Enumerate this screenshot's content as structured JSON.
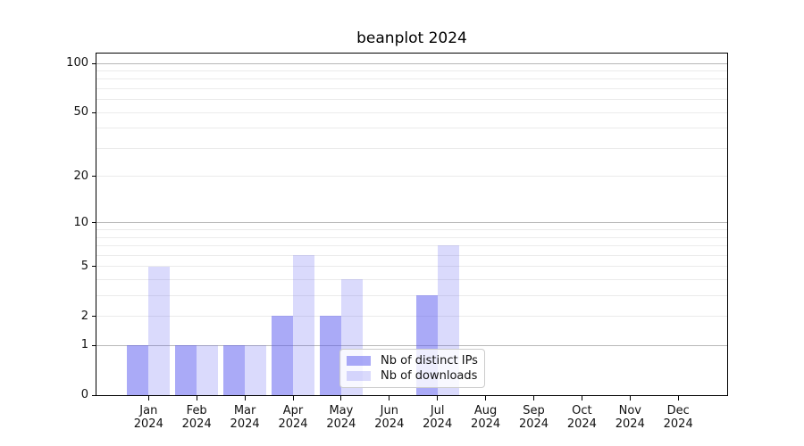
{
  "chart_data": {
    "type": "bar",
    "title": "beanplot 2024",
    "categories": [
      "Jan\n2024",
      "Feb\n2024",
      "Mar\n2024",
      "Apr\n2024",
      "May\n2024",
      "Jun\n2024",
      "Jul\n2024",
      "Aug\n2024",
      "Sep\n2024",
      "Oct\n2024",
      "Nov\n2024",
      "Dec\n2024"
    ],
    "series": [
      {
        "name": "Nb of distinct IPs",
        "color": "#5555f0",
        "alpha": 0.5,
        "values": [
          1,
          1,
          1,
          2,
          2,
          0,
          3,
          0,
          0,
          0,
          0,
          0
        ]
      },
      {
        "name": "Nb of downloads",
        "color": "#5555f0",
        "alpha": 0.22,
        "values": [
          5,
          1,
          1,
          6,
          4,
          0,
          7,
          0,
          0,
          0,
          0,
          0
        ]
      }
    ],
    "y_axis": {
      "scale": "log(1+y)",
      "ylim": [
        0,
        115
      ],
      "ticks": [
        {
          "v": 100,
          "label": "100"
        },
        {
          "v": 50,
          "label": "50"
        },
        {
          "v": 20,
          "label": "20"
        },
        {
          "v": 10,
          "label": "10"
        },
        {
          "v": 5,
          "label": "5"
        },
        {
          "v": 2,
          "label": "2"
        },
        {
          "v": 1,
          "label": "1"
        },
        {
          "v": 0,
          "label": "0"
        }
      ],
      "major_gridlines": [
        1,
        10,
        100
      ],
      "minor_gridlines": [
        2,
        3,
        4,
        5,
        6,
        7,
        8,
        9,
        20,
        30,
        40,
        50,
        60,
        70,
        80,
        90
      ]
    },
    "grid": true,
    "legend": {
      "position": "lower center"
    },
    "colors": {
      "major_grid": "#b8b8b8",
      "minor_grid": "#ebebeb",
      "axis": "#000000",
      "text": "#111111"
    }
  }
}
